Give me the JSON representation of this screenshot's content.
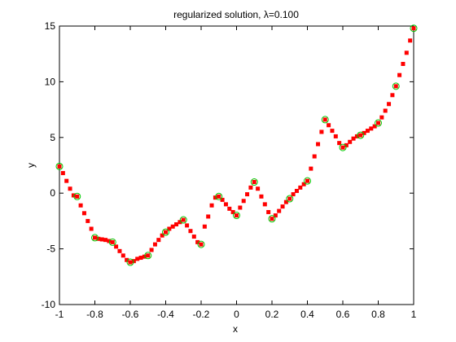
{
  "chart_data": {
    "type": "scatter",
    "title": "regularized solution, λ=0.100",
    "xlabel": "x",
    "ylabel": "y",
    "xlim": [
      -1,
      1
    ],
    "ylim": [
      -10,
      15
    ],
    "xticks": [
      -1,
      -0.8,
      -0.6,
      -0.4,
      -0.2,
      0,
      0.2,
      0.4,
      0.6,
      0.8,
      1
    ],
    "xtick_labels": [
      "-1",
      "-0.8",
      "-0.6",
      "-0.4",
      "-0.2",
      "0",
      "0.2",
      "0.4",
      "0.6",
      "0.8",
      "1"
    ],
    "yticks": [
      -10,
      -5,
      0,
      5,
      10,
      15
    ],
    "ytick_labels": [
      "-10",
      "-5",
      "0",
      "5",
      "10",
      "15"
    ],
    "grid": false,
    "series": [
      {
        "marker": "square",
        "color": "#ff0000",
        "x": [
          -1,
          -0.98,
          -0.96,
          -0.94,
          -0.92,
          -0.9,
          -0.88,
          -0.86,
          -0.84,
          -0.82,
          -0.8,
          -0.78,
          -0.76,
          -0.74,
          -0.72,
          -0.7,
          -0.68,
          -0.66,
          -0.64,
          -0.62,
          -0.6,
          -0.58,
          -0.56,
          -0.54,
          -0.52,
          -0.5,
          -0.48,
          -0.46,
          -0.44,
          -0.42,
          -0.4,
          -0.38,
          -0.36,
          -0.34,
          -0.32,
          -0.3,
          -0.28,
          -0.26,
          -0.24,
          -0.22,
          -0.2,
          -0.18,
          -0.16,
          -0.14,
          -0.12,
          -0.1,
          -0.08,
          -0.06,
          -0.04,
          -0.02,
          0,
          0.02,
          0.04,
          0.06,
          0.08,
          0.1,
          0.12,
          0.14,
          0.16,
          0.18,
          0.2,
          0.22,
          0.24,
          0.26,
          0.28,
          0.3,
          0.32,
          0.34,
          0.36,
          0.38,
          0.4,
          0.42,
          0.44,
          0.46,
          0.48,
          0.5,
          0.52,
          0.54,
          0.56,
          0.58,
          0.6,
          0.62,
          0.64,
          0.66,
          0.68,
          0.7,
          0.72,
          0.74,
          0.76,
          0.78,
          0.8,
          0.82,
          0.84,
          0.86,
          0.88,
          0.9,
          0.92,
          0.94,
          0.96,
          0.98,
          1
        ],
        "y": [
          2.4,
          1.8,
          1.1,
          0.4,
          -0.2,
          -0.3,
          -1.1,
          -1.8,
          -2.5,
          -3.2,
          -4.0,
          -4.1,
          -4.15,
          -4.2,
          -4.3,
          -4.4,
          -4.8,
          -5.2,
          -5.6,
          -6.0,
          -6.2,
          -6.1,
          -5.9,
          -5.8,
          -5.7,
          -5.6,
          -5.1,
          -4.6,
          -4.2,
          -3.8,
          -3.5,
          -3.2,
          -3.0,
          -2.8,
          -2.6,
          -2.4,
          -2.9,
          -3.4,
          -3.9,
          -4.4,
          -4.6,
          -3.0,
          -2.1,
          -1.1,
          -0.4,
          -0.3,
          -0.6,
          -1.0,
          -1.4,
          -1.7,
          -2.0,
          -1.3,
          -0.7,
          -0.1,
          0.5,
          1.0,
          0.4,
          -0.3,
          -1.0,
          -1.7,
          -2.3,
          -2.0,
          -1.6,
          -1.2,
          -0.8,
          -0.5,
          -0.1,
          0.2,
          0.5,
          0.8,
          1.1,
          2.2,
          3.3,
          4.4,
          5.5,
          6.6,
          6.1,
          5.6,
          5.1,
          4.5,
          4.1,
          4.3,
          4.6,
          4.9,
          5.1,
          5.2,
          5.4,
          5.6,
          5.8,
          6.0,
          6.3,
          6.8,
          7.4,
          8.0,
          8.8,
          9.6,
          10.6,
          11.6,
          12.6,
          13.7,
          14.8
        ]
      },
      {
        "marker": "circle-open",
        "color": "#00cc00",
        "x": [
          -1,
          -0.9,
          -0.8,
          -0.7,
          -0.6,
          -0.5,
          -0.4,
          -0.3,
          -0.2,
          -0.1,
          0,
          0.1,
          0.2,
          0.3,
          0.4,
          0.5,
          0.6,
          0.7,
          0.8,
          0.9,
          1
        ],
        "y": [
          2.4,
          -0.3,
          -4.0,
          -4.4,
          -6.2,
          -5.6,
          -3.5,
          -2.4,
          -4.6,
          -0.3,
          -2.0,
          1.0,
          -2.3,
          -0.5,
          1.1,
          6.6,
          4.1,
          5.2,
          6.3,
          9.6,
          14.8
        ]
      }
    ]
  }
}
